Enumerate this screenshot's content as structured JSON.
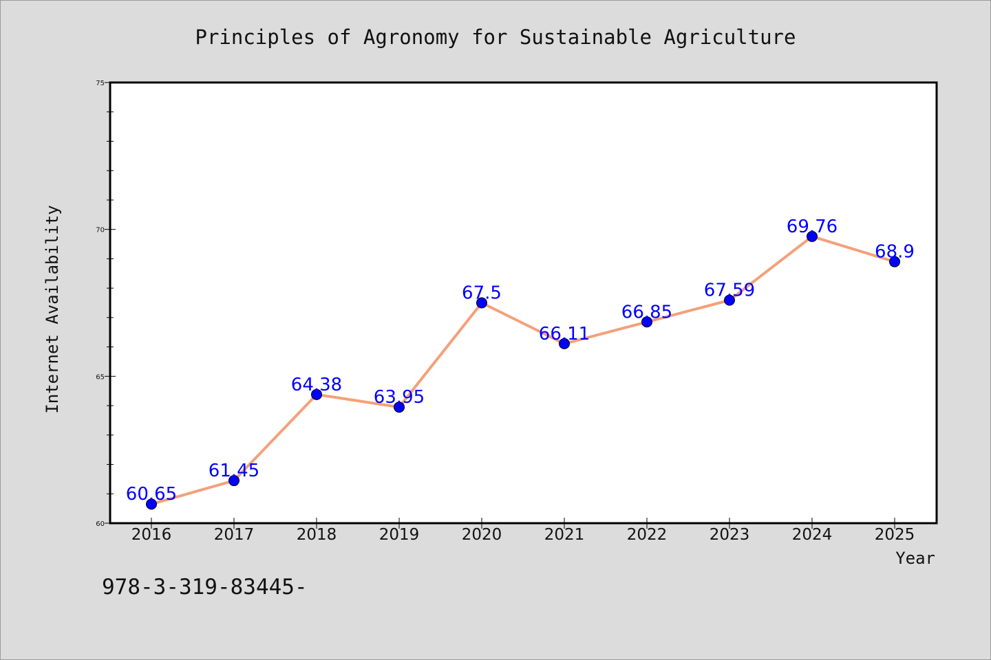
{
  "chart_data": {
    "type": "line",
    "title": "Principles of Agronomy for Sustainable Agriculture",
    "xlabel": "Year",
    "ylabel": "Internet Availability",
    "categories": [
      "2016",
      "2017",
      "2018",
      "2019",
      "2020",
      "2021",
      "2022",
      "2023",
      "2024",
      "2025"
    ],
    "series": [
      {
        "values": [
          60.65,
          61.45,
          64.38,
          63.95,
          67.5,
          66.11,
          66.85,
          67.59,
          69.76,
          68.9
        ]
      }
    ],
    "data_labels": [
      "60.65",
      "61.45",
      "64.38",
      "63.95",
      "67.5",
      "66.11",
      "66.85",
      "67.59",
      "69.76",
      "68.9"
    ],
    "ylim": [
      60,
      75
    ],
    "yticks": [
      60,
      65,
      70,
      75
    ],
    "grid": false,
    "legend": "none",
    "colors": {
      "line": "#f4a07a",
      "marker": "#0000ff",
      "label": "#0000ff",
      "background": "#dcdcdc",
      "plot_bg": "#ffffff"
    }
  },
  "footer_text": "978-3-319-83445-"
}
